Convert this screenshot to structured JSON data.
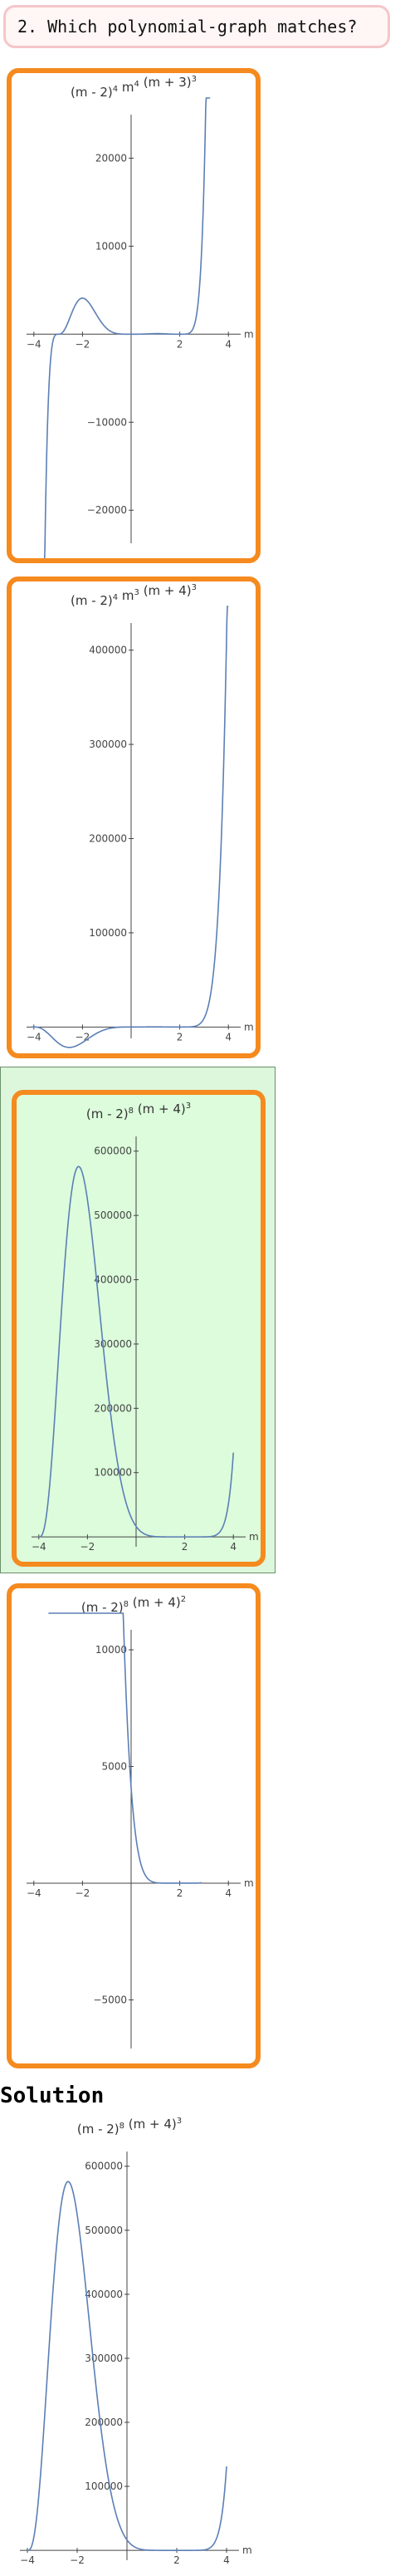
{
  "question": {
    "text": "2. Which polynomial-graph matches?"
  },
  "solution": {
    "heading": "Solution"
  },
  "colors": {
    "curve": "#5b7fb5",
    "option_border": "#f58a1f",
    "selected_bg": "#dcfcdc",
    "axis": "#444444"
  },
  "chart_data": [
    {
      "id": "option-1",
      "type": "line",
      "title_parts": [
        [
          "(m - 2)",
          "4"
        ],
        [
          " m",
          "4"
        ],
        [
          " (m + 3)",
          "3"
        ]
      ],
      "xlabel": "m",
      "ylabel": "",
      "xlim": [
        -4.3,
        4.3
      ],
      "ylim": [
        -23000,
        24000
      ],
      "xticks": [
        -4,
        -2,
        2,
        4
      ],
      "yticks": [
        -20000,
        -10000,
        10000,
        20000
      ],
      "ytick_labels": [
        "-20000",
        "-10000",
        "10000",
        "20000"
      ],
      "formula": {
        "shift": 0,
        "factors": [
          [
            2,
            4
          ],
          [
            0,
            4
          ],
          [
            -3,
            3
          ]
        ]
      },
      "sample_range": [
        -4,
        3.25
      ]
    },
    {
      "id": "option-2",
      "type": "line",
      "title_parts": [
        [
          "(m - 2)",
          "4"
        ],
        [
          " m",
          "3"
        ],
        [
          " (m + 4)",
          "3"
        ]
      ],
      "xlabel": "m",
      "ylabel": "",
      "xlim": [
        -4.3,
        4.3
      ],
      "ylim": [
        -5000,
        420000
      ],
      "xticks": [
        -4,
        -2,
        2,
        4
      ],
      "yticks": [
        100000,
        200000,
        300000,
        400000
      ],
      "ytick_labels": [
        "100000",
        "200000",
        "300000",
        "400000"
      ],
      "formula": {
        "shift": 0,
        "factors": [
          [
            2,
            4
          ],
          [
            0,
            3
          ],
          [
            -4,
            3
          ]
        ]
      },
      "sample_range": [
        -4.1,
        4
      ]
    },
    {
      "id": "option-3",
      "type": "line",
      "title_parts": [
        [
          "(m - 2)",
          "8"
        ],
        [
          " (m + 4)",
          "3"
        ]
      ],
      "xlabel": "m",
      "ylabel": "",
      "xlim": [
        -4.3,
        4.3
      ],
      "ylim": [
        -5000,
        610000
      ],
      "xticks": [
        -4,
        -2,
        2,
        4
      ],
      "yticks": [
        100000,
        200000,
        300000,
        400000,
        500000,
        600000
      ],
      "ytick_labels": [
        "100000",
        "200000",
        "300000",
        "400000",
        "500000",
        "600000"
      ],
      "formula": {
        "shift": 0,
        "factors": [
          [
            2,
            8
          ],
          [
            -4,
            3
          ]
        ]
      },
      "sample_range": [
        -4,
        4
      ]
    },
    {
      "id": "option-4",
      "type": "line",
      "title_parts": [
        [
          "(m - 2)",
          "8"
        ],
        [
          " (m + 4)",
          "2"
        ]
      ],
      "xlabel": "m",
      "ylabel": "",
      "xlim": [
        -4.3,
        4.3
      ],
      "ylim": [
        -6800,
        10500
      ],
      "xticks": [
        -4,
        -2,
        2,
        4
      ],
      "yticks": [
        -5000,
        5000,
        10000
      ],
      "ytick_labels": [
        "-5000",
        "5000",
        "10000"
      ],
      "formula": {
        "shift": 0,
        "factors": [
          [
            2,
            8
          ],
          [
            -4,
            2
          ]
        ]
      },
      "sample_range": [
        -3.4,
        2.9
      ]
    },
    {
      "id": "solution",
      "type": "line",
      "title_parts": [
        [
          "(m - 2)",
          "8"
        ],
        [
          " (m + 4)",
          "3"
        ]
      ],
      "xlabel": "m",
      "ylabel": "",
      "xlim": [
        -4.3,
        4.3
      ],
      "ylim": [
        -5000,
        610000
      ],
      "xticks": [
        -4,
        -2,
        2,
        4
      ],
      "yticks": [
        100000,
        200000,
        300000,
        400000,
        500000,
        600000
      ],
      "ytick_labels": [
        "100000",
        "200000",
        "300000",
        "400000",
        "500000",
        "600000"
      ],
      "formula": {
        "shift": 0,
        "factors": [
          [
            2,
            8
          ],
          [
            -4,
            3
          ]
        ]
      },
      "sample_range": [
        -4,
        4
      ]
    }
  ]
}
